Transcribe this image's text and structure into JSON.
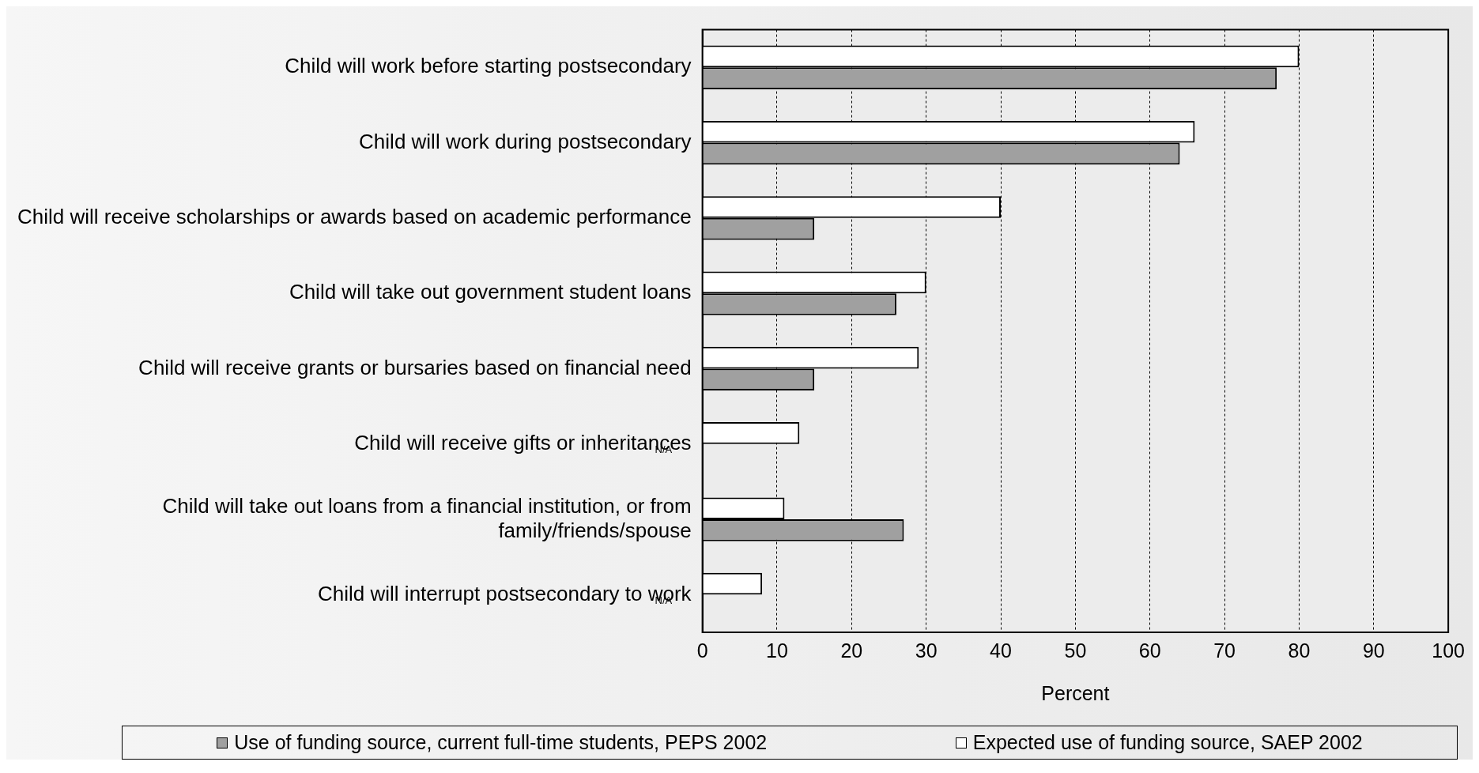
{
  "chart_data": {
    "type": "bar",
    "orientation": "horizontal",
    "xlabel": "Percent",
    "categories": [
      "Child will work before starting postsecondary",
      "Child will work during postsecondary",
      "Child will receive scholarships or awards based on academic performance",
      "Child will take out government student loans",
      "Child will receive grants or bursaries based on financial need",
      "Child will receive gifts or inheritances",
      "Child will take out loans from a financial institution, or from family/friends/spouse",
      "Child will interrupt postsecondary to work"
    ],
    "series": [
      {
        "name": "Expected use of funding source, SAEP 2002",
        "color": "#ffffff",
        "values": [
          80,
          66,
          40,
          30,
          29,
          13,
          11,
          8
        ]
      },
      {
        "name": "Use of funding source, current full-time students, PEPS 2002",
        "color": "#a0a0a0",
        "values": [
          77,
          64,
          15,
          26,
          15,
          null,
          27,
          null
        ]
      }
    ],
    "xlim": [
      0,
      100
    ],
    "xticks": [
      0,
      10,
      20,
      30,
      40,
      50,
      60,
      70,
      80,
      90,
      100
    ],
    "grid": "x",
    "legend": "bottom",
    "annotations": [
      {
        "text": "N/A",
        "x": 0,
        "y": "Child will receive gifts or inheritances"
      },
      {
        "text": "N/A",
        "x": 0,
        "y": "Child will interrupt postsecondary to work"
      }
    ]
  }
}
